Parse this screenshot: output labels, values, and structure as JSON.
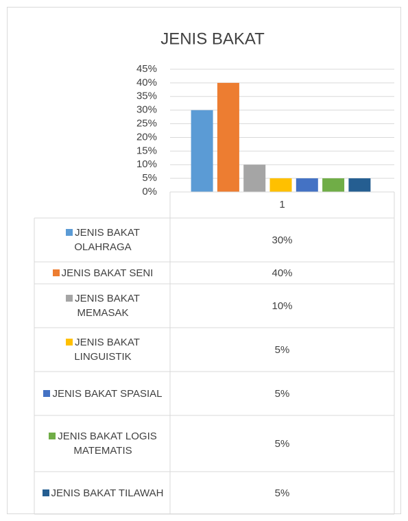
{
  "chart_data": {
    "type": "bar",
    "title": "JENIS BAKAT",
    "categories": [
      "1"
    ],
    "series": [
      {
        "name": "JENIS BAKAT OLAHRAGA",
        "color": "#5b9bd5",
        "values": [
          30
        ],
        "value_labels": [
          "30%"
        ]
      },
      {
        "name": "JENIS BAKAT SENI",
        "color": "#ed7d31",
        "values": [
          40
        ],
        "value_labels": [
          "40%"
        ]
      },
      {
        "name": "JENIS BAKAT MEMASAK",
        "color": "#a5a5a5",
        "values": [
          10
        ],
        "value_labels": [
          "10%"
        ]
      },
      {
        "name": "JENIS BAKAT LINGUISTIK",
        "color": "#ffc000",
        "values": [
          5
        ],
        "value_labels": [
          "5%"
        ]
      },
      {
        "name": "JENIS BAKAT SPASIAL",
        "color": "#4472c4",
        "values": [
          5
        ],
        "value_labels": [
          "5%"
        ]
      },
      {
        "name": "JENIS BAKAT LOGIS MATEMATIS",
        "color": "#70ad47",
        "values": [
          5
        ],
        "value_labels": [
          "5%"
        ]
      },
      {
        "name": "JENIS BAKAT TILAWAH",
        "color": "#255e91",
        "values": [
          5
        ],
        "value_labels": [
          "5%"
        ]
      }
    ],
    "ylim": [
      0,
      45
    ],
    "yticks": [
      {
        "value": 0,
        "label": "0%"
      },
      {
        "value": 5,
        "label": "5%"
      },
      {
        "value": 10,
        "label": "10%"
      },
      {
        "value": 15,
        "label": "15%"
      },
      {
        "value": 20,
        "label": "20%"
      },
      {
        "value": 25,
        "label": "25%"
      },
      {
        "value": 30,
        "label": "30%"
      },
      {
        "value": 35,
        "label": "35%"
      },
      {
        "value": 40,
        "label": "40%"
      },
      {
        "value": 45,
        "label": "45%"
      }
    ],
    "grid": true
  }
}
